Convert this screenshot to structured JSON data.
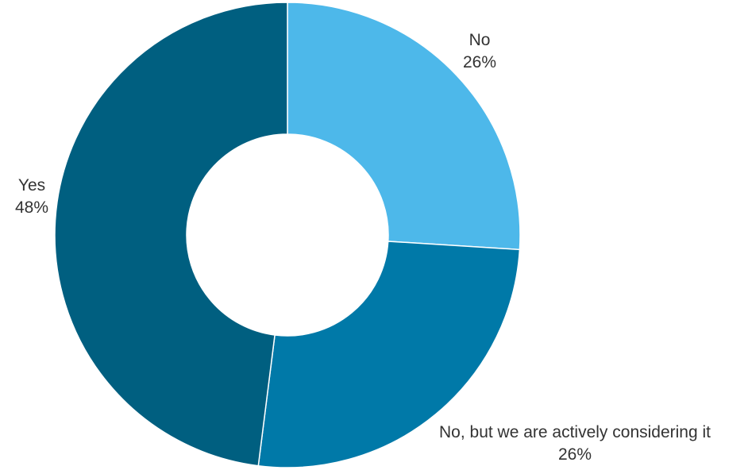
{
  "chart_data": {
    "type": "pie",
    "donut": true,
    "slices": [
      {
        "label": "No",
        "percent_label": "26%",
        "value": 26,
        "color": "#4db8ea"
      },
      {
        "label": "No, but we are actively considering it",
        "percent_label": "26%",
        "value": 26,
        "color": "#0079a8"
      },
      {
        "label": "Yes",
        "percent_label": "48%",
        "value": 48,
        "color": "#005f80"
      }
    ],
    "legend": "none"
  }
}
